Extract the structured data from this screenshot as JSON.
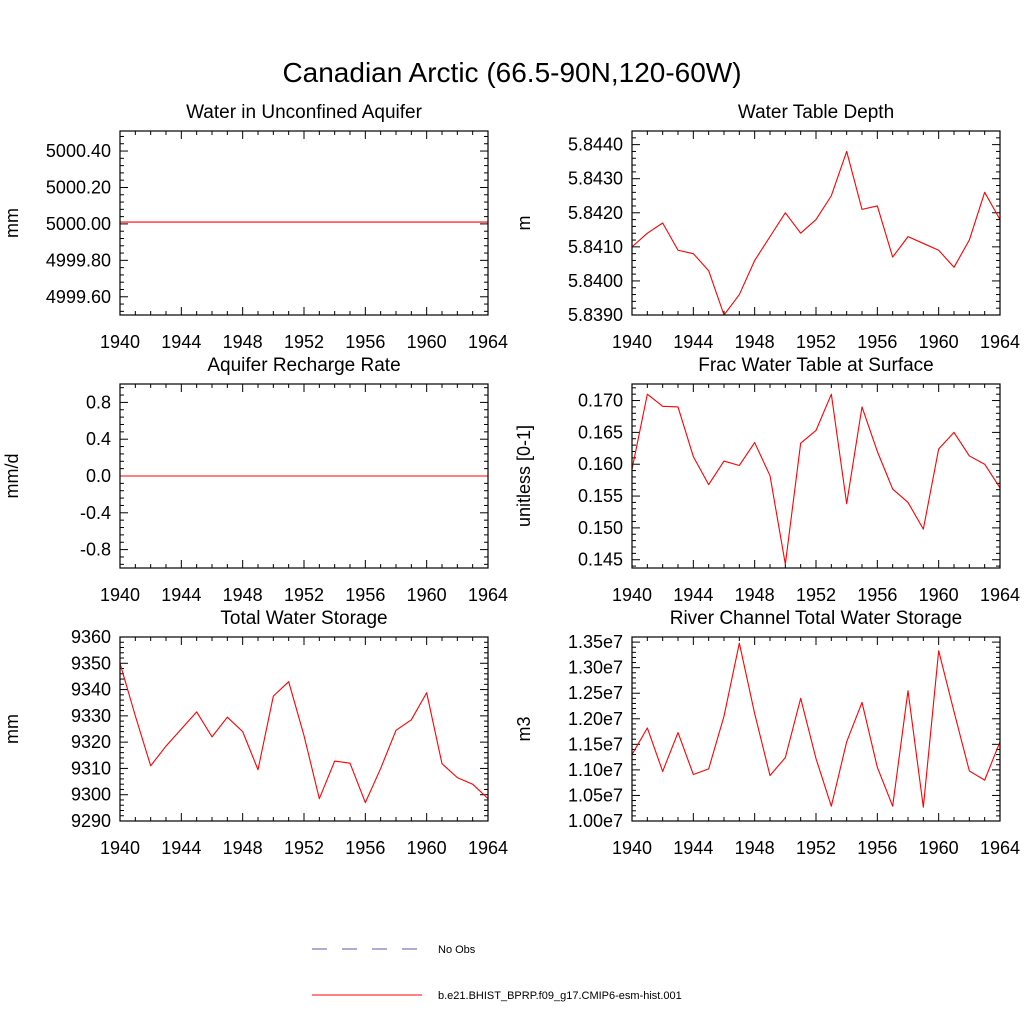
{
  "title": "Canadian Arctic (66.5-90N,120-60W)",
  "colors": {
    "model_line": "#ff0000",
    "obs_line": "#5a5aa8",
    "axis": "#000000"
  },
  "legend": {
    "obs_label": "No Obs",
    "model_label": "b.e21.BHIST_BPRP.f09_g17.CMIP6-esm-hist.001"
  },
  "chart_data": [
    {
      "type": "line",
      "title": "Water in Unconfined Aquifer",
      "ylabel": "mm",
      "xlim": [
        1940,
        1964
      ],
      "ylim": [
        4999.5,
        5000.51
      ],
      "xticks": [
        1940,
        1944,
        1948,
        1952,
        1956,
        1960,
        1964
      ],
      "xtick_labels": [
        "1940",
        "1944",
        "1948",
        "1952",
        "1956",
        "1960",
        "1964"
      ],
      "yticks": [
        4999.6,
        4999.8,
        5000.0,
        5000.2,
        5000.4
      ],
      "ytick_labels": [
        "4999.60",
        "4999.80",
        "5000.00",
        "5000.20",
        "5000.40"
      ],
      "series": [
        {
          "x": [
            1940,
            1941,
            1942,
            1943,
            1944,
            1945,
            1946,
            1947,
            1948,
            1949,
            1950,
            1951,
            1952,
            1953,
            1954,
            1955,
            1956,
            1957,
            1958,
            1959,
            1960,
            1961,
            1962,
            1963,
            1964
          ],
          "y": [
            5000.01,
            5000.01,
            5000.01,
            5000.01,
            5000.01,
            5000.01,
            5000.01,
            5000.01,
            5000.01,
            5000.01,
            5000.01,
            5000.01,
            5000.01,
            5000.01,
            5000.01,
            5000.01,
            5000.01,
            5000.01,
            5000.01,
            5000.01,
            5000.01,
            5000.01,
            5000.01,
            5000.01,
            5000.01
          ]
        }
      ]
    },
    {
      "type": "line",
      "title": "Water Table Depth",
      "ylabel": "m",
      "xlim": [
        1940,
        1964
      ],
      "ylim": [
        5.839,
        5.8444
      ],
      "xticks": [
        1940,
        1944,
        1948,
        1952,
        1956,
        1960,
        1964
      ],
      "xtick_labels": [
        "1940",
        "1944",
        "1948",
        "1952",
        "1956",
        "1960",
        "1964"
      ],
      "yticks": [
        5.839,
        5.84,
        5.841,
        5.842,
        5.843,
        5.844
      ],
      "ytick_labels": [
        "5.8390",
        "5.8400",
        "5.8410",
        "5.8420",
        "5.8430",
        "5.8440"
      ],
      "series": [
        {
          "x": [
            1940,
            1941,
            1942,
            1943,
            1944,
            1945,
            1946,
            1947,
            1948,
            1949,
            1950,
            1951,
            1952,
            1953,
            1954,
            1955,
            1956,
            1957,
            1958,
            1959,
            1960,
            1961,
            1962,
            1963,
            1964
          ],
          "y": [
            5.841,
            5.8414,
            5.8417,
            5.8409,
            5.8408,
            5.8403,
            5.839,
            5.8396,
            5.8406,
            5.8413,
            5.842,
            5.8414,
            5.8418,
            5.8425,
            5.8438,
            5.8421,
            5.8422,
            5.8407,
            5.8413,
            5.8411,
            5.8409,
            5.8404,
            5.8412,
            5.8426,
            5.8418
          ]
        }
      ]
    },
    {
      "type": "line",
      "title": "Aquifer Recharge Rate",
      "ylabel": "mm/d",
      "xlim": [
        1940,
        1964
      ],
      "ylim": [
        -1.0,
        1.0
      ],
      "xticks": [
        1940,
        1944,
        1948,
        1952,
        1956,
        1960,
        1964
      ],
      "xtick_labels": [
        "1940",
        "1944",
        "1948",
        "1952",
        "1956",
        "1960",
        "1964"
      ],
      "yticks": [
        -0.8,
        -0.4,
        0.0,
        0.4,
        0.8
      ],
      "ytick_labels": [
        "-0.8",
        "-0.4",
        "0.0",
        "0.4",
        "0.8"
      ],
      "series": [
        {
          "x": [
            1940,
            1941,
            1942,
            1943,
            1944,
            1945,
            1946,
            1947,
            1948,
            1949,
            1950,
            1951,
            1952,
            1953,
            1954,
            1955,
            1956,
            1957,
            1958,
            1959,
            1960,
            1961,
            1962,
            1963,
            1964
          ],
          "y": [
            0,
            0,
            0,
            0,
            0,
            0,
            0,
            0,
            0,
            0,
            0,
            0,
            0,
            0,
            0,
            0,
            0,
            0,
            0,
            0,
            0,
            0,
            0,
            0,
            0
          ]
        }
      ]
    },
    {
      "type": "line",
      "title": "Frac Water Table at Surface",
      "ylabel": "unitless [0-1]",
      "xlim": [
        1940,
        1964
      ],
      "ylim": [
        0.1437,
        0.1726
      ],
      "xticks": [
        1940,
        1944,
        1948,
        1952,
        1956,
        1960,
        1964
      ],
      "xtick_labels": [
        "1940",
        "1944",
        "1948",
        "1952",
        "1956",
        "1960",
        "1964"
      ],
      "yticks": [
        0.145,
        0.15,
        0.155,
        0.16,
        0.165,
        0.17
      ],
      "ytick_labels": [
        "0.145",
        "0.150",
        "0.155",
        "0.160",
        "0.165",
        "0.170"
      ],
      "series": [
        {
          "x": [
            1940,
            1941,
            1942,
            1943,
            1944,
            1945,
            1946,
            1947,
            1948,
            1949,
            1950,
            1951,
            1952,
            1953,
            1954,
            1955,
            1956,
            1957,
            1958,
            1959,
            1960,
            1961,
            1962,
            1963,
            1964
          ],
          "y": [
            0.1592,
            0.171,
            0.1691,
            0.169,
            0.1612,
            0.1568,
            0.1605,
            0.1598,
            0.1634,
            0.1582,
            0.1443,
            0.1633,
            0.1653,
            0.171,
            0.1538,
            0.169,
            0.162,
            0.1561,
            0.154,
            0.1498,
            0.1624,
            0.165,
            0.1613,
            0.16,
            0.1563
          ]
        }
      ]
    },
    {
      "type": "line",
      "title": "Total Water Storage",
      "ylabel": "mm",
      "xlim": [
        1940,
        1964
      ],
      "ylim": [
        9290,
        9360
      ],
      "xticks": [
        1940,
        1944,
        1948,
        1952,
        1956,
        1960,
        1964
      ],
      "xtick_labels": [
        "1940",
        "1944",
        "1948",
        "1952",
        "1956",
        "1960",
        "1964"
      ],
      "yticks": [
        9290,
        9300,
        9310,
        9320,
        9330,
        9340,
        9350,
        9360
      ],
      "ytick_labels": [
        "9290",
        "9300",
        "9310",
        "9320",
        "9330",
        "9340",
        "9350",
        "9360"
      ],
      "series": [
        {
          "x": [
            1940,
            1941,
            1942,
            1943,
            1944,
            1945,
            1946,
            1947,
            1948,
            1949,
            1950,
            1951,
            1952,
            1953,
            1954,
            1955,
            1956,
            1957,
            1958,
            1959,
            1960,
            1961,
            1962,
            1963,
            1964
          ],
          "y": [
            9350.0,
            9330.0,
            9311.0,
            9318.5,
            9325.0,
            9331.5,
            9322.0,
            9329.5,
            9324.0,
            9309.5,
            9337.5,
            9343.0,
            9322.5,
            9298.5,
            9312.8,
            9312.0,
            9297.0,
            9310.0,
            9324.5,
            9328.5,
            9338.8,
            9311.8,
            9306.5,
            9304.0,
            9298.5
          ]
        }
      ]
    },
    {
      "type": "line",
      "title": "River Channel Total Water Storage",
      "ylabel": "m3",
      "xlim": [
        1940,
        1964
      ],
      "ylim": [
        10000000,
        13600000
      ],
      "xticks": [
        1940,
        1944,
        1948,
        1952,
        1956,
        1960,
        1964
      ],
      "xtick_labels": [
        "1940",
        "1944",
        "1948",
        "1952",
        "1956",
        "1960",
        "1964"
      ],
      "yticks": [
        10000000,
        10500000,
        11000000,
        11500000,
        12000000,
        12500000,
        13000000,
        13500000
      ],
      "ytick_labels": [
        "1.00e7",
        "1.05e7",
        "1.10e7",
        "1.15e7",
        "1.20e7",
        "1.25e7",
        "1.30e7",
        "1.35e7"
      ],
      "series": [
        {
          "x": [
            1940,
            1941,
            1942,
            1943,
            1944,
            1945,
            1946,
            1947,
            1948,
            1949,
            1950,
            1951,
            1952,
            1953,
            1954,
            1955,
            1956,
            1957,
            1958,
            1959,
            1960,
            1961,
            1962,
            1963,
            1964
          ],
          "y": [
            11300000,
            11820000,
            10970000,
            11730000,
            10910000,
            11020000,
            12050000,
            13480000,
            12100000,
            10890000,
            11240000,
            12400000,
            11220000,
            10290000,
            11550000,
            12320000,
            11050000,
            10290000,
            12550000,
            10270000,
            13330000,
            12140000,
            10980000,
            10800000,
            11550000
          ]
        }
      ]
    }
  ]
}
